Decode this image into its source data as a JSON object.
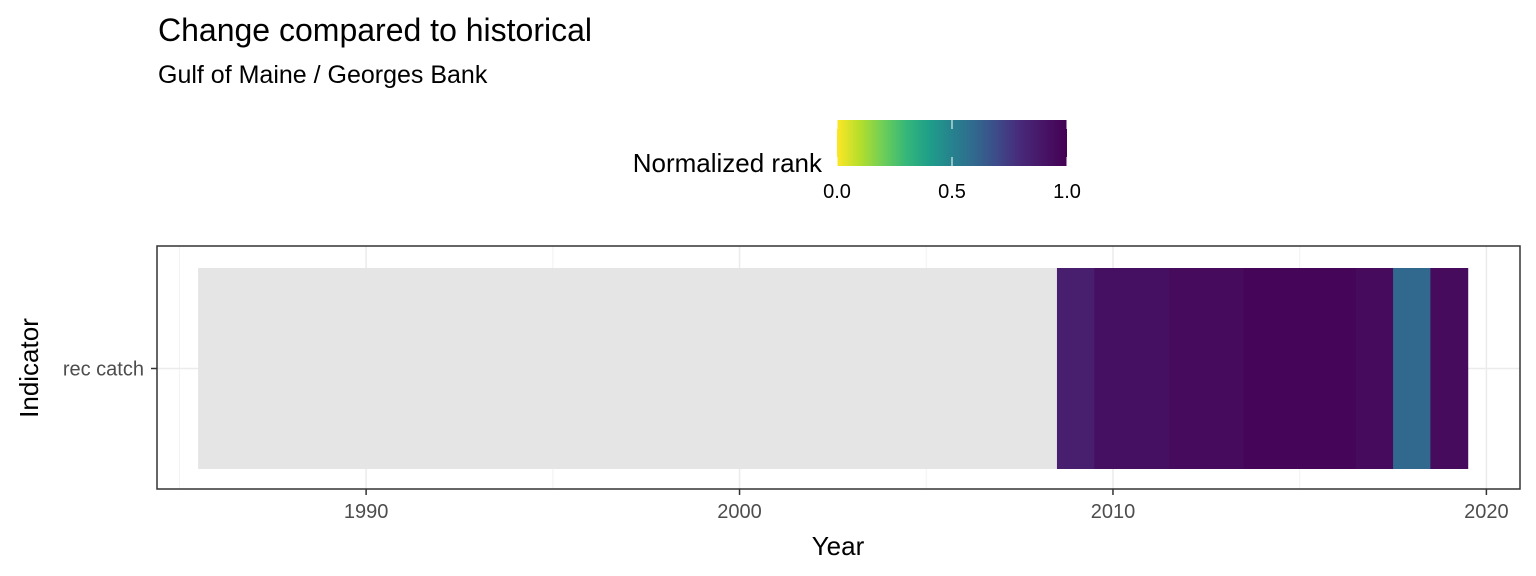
{
  "chart_data": {
    "type": "heatmap",
    "title": "Change compared to historical",
    "subtitle": "Gulf of Maine / Georges Bank",
    "xlabel": "Year",
    "ylabel": "Indicator",
    "xlim": [
      1984.4,
      2020.9
    ],
    "x_ticks": [
      1990,
      2000,
      2010,
      2020
    ],
    "grid": true,
    "legend": {
      "title": "Normalized rank",
      "position": "top",
      "ticks": [
        "0.0",
        "0.5",
        "1.0"
      ],
      "range": [
        0,
        1
      ],
      "palette": "viridis"
    },
    "rows": [
      "rec catch"
    ],
    "missing": {
      "from": 1985.5,
      "to": 2008.5,
      "color": "#e5e5e5"
    },
    "cells": [
      {
        "year": 2009,
        "value": 0.85
      },
      {
        "year": 2010,
        "value": 0.92
      },
      {
        "year": 2011,
        "value": 0.92
      },
      {
        "year": 2012,
        "value": 0.95
      },
      {
        "year": 2013,
        "value": 0.95
      },
      {
        "year": 2014,
        "value": 0.98
      },
      {
        "year": 2015,
        "value": 0.98
      },
      {
        "year": 2016,
        "value": 0.98
      },
      {
        "year": 2017,
        "value": 0.95
      },
      {
        "year": 2018,
        "value": 0.6
      },
      {
        "year": 2019,
        "value": 0.95
      }
    ]
  }
}
